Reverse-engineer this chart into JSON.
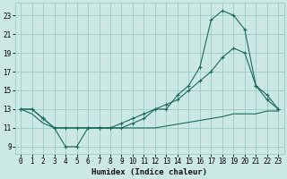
{
  "xlabel": "Humidex (Indice chaleur)",
  "bg_color": "#cce8e4",
  "grid_color": "#99ccc7",
  "line_color": "#1a6b5a",
  "x_ticks": [
    0,
    1,
    2,
    3,
    4,
    5,
    6,
    7,
    8,
    9,
    10,
    11,
    12,
    13,
    14,
    15,
    16,
    17,
    18,
    19,
    20,
    21,
    22,
    23
  ],
  "y_ticks": [
    9,
    11,
    13,
    15,
    17,
    19,
    21,
    23
  ],
  "xlim": [
    -0.5,
    23.5
  ],
  "ylim": [
    8.2,
    24.3
  ],
  "line1_x": [
    0,
    1,
    2,
    3,
    4,
    5,
    6,
    7,
    8,
    9,
    10,
    11,
    12,
    13,
    14,
    15,
    16,
    17,
    18,
    19,
    20,
    21,
    22,
    23
  ],
  "line1_y": [
    13,
    13,
    12,
    11,
    9,
    9,
    11,
    11,
    11,
    11,
    11.5,
    12,
    13,
    13,
    14.5,
    15.5,
    17.5,
    22.5,
    23.5,
    23,
    21.5,
    15.5,
    14,
    13
  ],
  "line2_x": [
    0,
    1,
    2,
    3,
    4,
    5,
    6,
    7,
    8,
    9,
    10,
    11,
    12,
    13,
    14,
    15,
    16,
    17,
    18,
    19,
    20,
    21,
    22,
    23
  ],
  "line2_y": [
    13,
    13,
    12,
    11,
    11,
    11,
    11,
    11,
    11,
    11.5,
    12,
    12.5,
    13,
    13.5,
    14,
    15,
    16,
    17,
    18.5,
    19.5,
    19,
    15.5,
    14.5,
    13
  ],
  "line3_x": [
    0,
    1,
    2,
    3,
    4,
    5,
    6,
    7,
    8,
    9,
    10,
    11,
    12,
    13,
    14,
    15,
    16,
    17,
    18,
    19,
    20,
    21,
    22,
    23
  ],
  "line3_y": [
    13,
    12.5,
    11.5,
    11,
    11,
    11,
    11,
    11,
    11,
    11,
    11,
    11,
    11,
    11.2,
    11.4,
    11.6,
    11.8,
    12,
    12.2,
    12.5,
    12.5,
    12.5,
    12.8,
    12.8
  ]
}
